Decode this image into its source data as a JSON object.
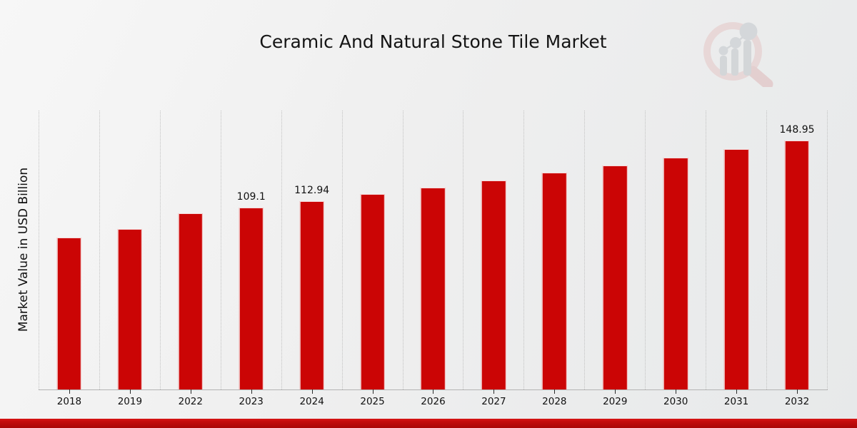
{
  "title": "Ceramic And Natural Stone Tile Market",
  "ylabel": "Market Value in USD Billion",
  "logo_icon": "magnifier-bar-chart-logo",
  "colors": {
    "bar": "#cb0505",
    "bar_edge": "#f0f0f0",
    "bottom_band": "#b80b0b",
    "grid_line": "#c2c2c2",
    "axis_line": "#b3b3b3",
    "text": "#121212",
    "logo_ring": "#e6caca",
    "logo_bars": "#c4c8cc"
  },
  "chart_data": {
    "type": "bar",
    "title": "Ceramic And Natural Stone Tile Market",
    "xlabel": "",
    "ylabel": "Market Value in USD Billion",
    "categories": [
      "2018",
      "2019",
      "2022",
      "2023",
      "2024",
      "2025",
      "2026",
      "2027",
      "2028",
      "2029",
      "2030",
      "2031",
      "2032"
    ],
    "values": [
      90.9,
      96.0,
      105.4,
      109.1,
      112.94,
      116.92,
      121.03,
      125.29,
      129.7,
      134.26,
      138.99,
      143.88,
      148.95
    ],
    "bar_labels": [
      "",
      "",
      "",
      "109.1",
      "112.94",
      "",
      "",
      "",
      "",
      "",
      "",
      "",
      "148.95"
    ],
    "ylim": [
      0,
      167
    ],
    "y_axis_ticks_visible": false,
    "grid": "vertical dotted column separators",
    "legend": "none",
    "bar_color": "#cb0505"
  }
}
